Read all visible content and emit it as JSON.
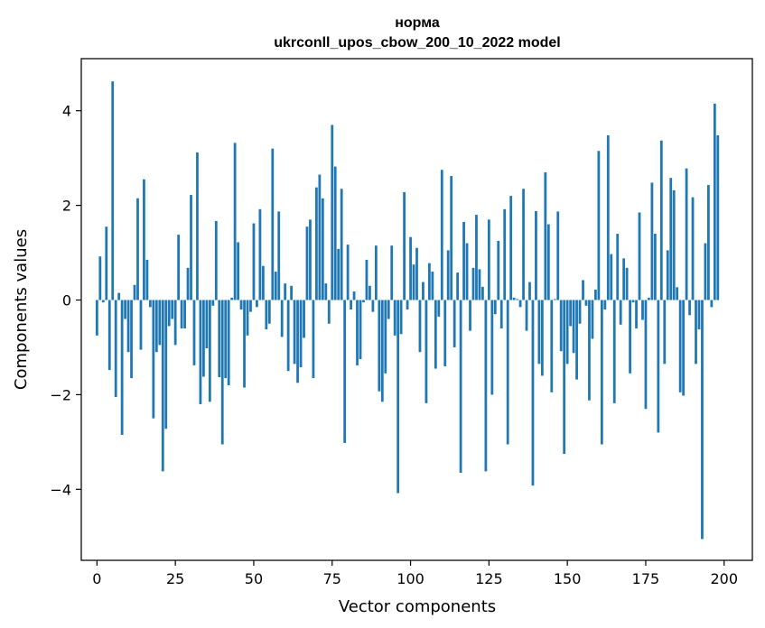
{
  "chart_data": {
    "type": "bar",
    "title_line1": "норма",
    "title_line2": "ukrconll_upos_cbow_200_10_2022 model",
    "xlabel": "Vector components",
    "ylabel": "Components values",
    "xlim": [
      -5,
      209
    ],
    "ylim": [
      -5.5,
      5.1
    ],
    "x_ticks": [
      {
        "value": 0,
        "label": "0"
      },
      {
        "value": 25,
        "label": "25"
      },
      {
        "value": 50,
        "label": "50"
      },
      {
        "value": 75,
        "label": "75"
      },
      {
        "value": 100,
        "label": "100"
      },
      {
        "value": 125,
        "label": "125"
      },
      {
        "value": 150,
        "label": "150"
      },
      {
        "value": 175,
        "label": "175"
      },
      {
        "value": 200,
        "label": "200"
      }
    ],
    "y_ticks": [
      {
        "value": -4,
        "label": "−4"
      },
      {
        "value": -2,
        "label": "−2"
      },
      {
        "value": 0,
        "label": "0"
      },
      {
        "value": 2,
        "label": "2"
      },
      {
        "value": 4,
        "label": "4"
      }
    ],
    "bar_color": "#1f77b4",
    "grid": false,
    "values": [
      -0.75,
      0.92,
      -0.05,
      1.55,
      -1.48,
      4.62,
      -2.05,
      0.15,
      -2.85,
      -0.4,
      -1.1,
      -1.65,
      0.32,
      2.15,
      -1.05,
      2.55,
      0.85,
      -0.15,
      -2.5,
      -1.1,
      -0.95,
      -3.62,
      -2.72,
      -0.55,
      -0.4,
      -0.95,
      1.38,
      -0.6,
      -0.6,
      0.68,
      2.22,
      -1.38,
      3.12,
      -2.2,
      -1.62,
      -1.02,
      -2.15,
      -0.12,
      1.67,
      -1.63,
      -3.05,
      -1.65,
      -1.8,
      0.05,
      3.32,
      1.22,
      -0.2,
      -1.85,
      -0.75,
      -0.25,
      1.62,
      -0.15,
      1.92,
      0.72,
      -0.62,
      -0.5,
      3.2,
      0.6,
      1.87,
      -0.78,
      0.35,
      -1.5,
      0.3,
      -1.35,
      -1.75,
      -1.42,
      -0.8,
      1.55,
      1.7,
      -1.65,
      2.38,
      2.65,
      2.15,
      0.35,
      -0.5,
      3.7,
      2.82,
      1.08,
      2.35,
      -3.02,
      1.17,
      -0.2,
      0.18,
      -1.38,
      -1.25,
      -0.05,
      0.85,
      0.3,
      -0.25,
      1.15,
      -1.93,
      -2.15,
      -1.55,
      -0.4,
      1.15,
      -0.75,
      -4.08,
      -0.72,
      2.28,
      -0.2,
      1.33,
      0.75,
      1.1,
      -1.1,
      0.38,
      -2.18,
      0.78,
      0.6,
      -1.45,
      -0.35,
      2.75,
      -1.4,
      1.05,
      2.62,
      -1.0,
      0.58,
      -3.65,
      1.65,
      1.2,
      -0.65,
      0.68,
      1.8,
      0.65,
      0.28,
      -3.62,
      1.7,
      -2.0,
      -0.3,
      1.25,
      -0.6,
      1.92,
      -3.05,
      2.2,
      0.05,
      0.02,
      -0.15,
      2.35,
      -0.65,
      0.38,
      -3.92,
      1.88,
      -1.35,
      -1.6,
      2.7,
      1.6,
      -1.95,
      0.02,
      1.87,
      -1.08,
      -3.25,
      -1.35,
      -0.55,
      -1.12,
      -1.68,
      -0.5,
      0.42,
      -0.12,
      -2.12,
      -0.82,
      0.22,
      3.15,
      -3.05,
      -0.2,
      3.48,
      0.97,
      -2.18,
      1.4,
      -0.52,
      0.88,
      0.68,
      -1.55,
      -0.05,
      -0.6,
      1.85,
      -0.42,
      -2.3,
      0.05,
      2.48,
      1.4,
      -2.8,
      3.37,
      -1.35,
      1.05,
      2.58,
      2.32,
      0.27,
      -1.95,
      -2.02,
      2.78,
      -0.32,
      2.17,
      -1.35,
      -0.62,
      -5.05,
      1.2,
      2.43,
      -0.15,
      4.15,
      3.48
    ]
  }
}
